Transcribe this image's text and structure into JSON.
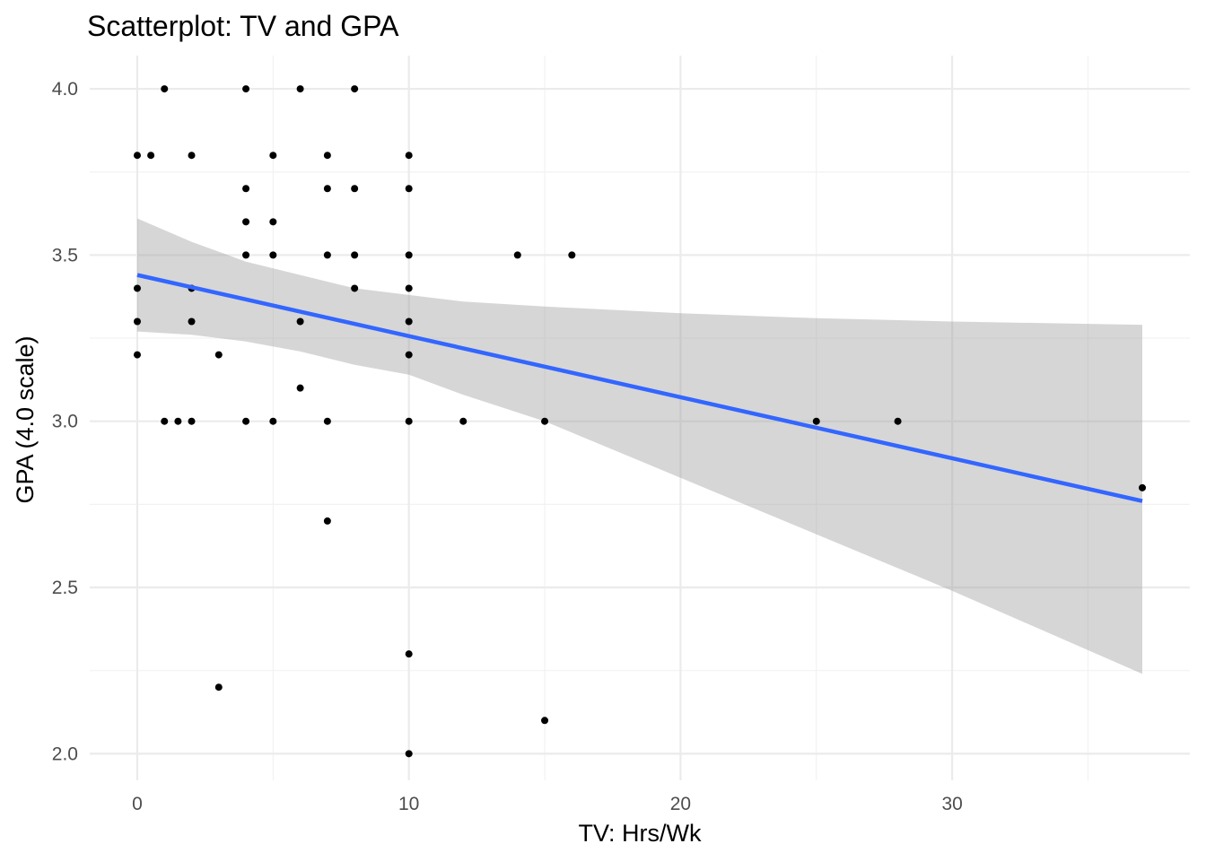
{
  "chart_data": {
    "type": "scatter",
    "title": "Scatterplot: TV and GPA",
    "xlabel": "TV: Hrs/Wk",
    "ylabel": "GPA (4.0 scale)",
    "xlim": [
      -1.75,
      38.75
    ],
    "ylim": [
      1.92,
      4.1
    ],
    "x_ticks": [
      0,
      10,
      20,
      30
    ],
    "x_tick_labels": [
      "0",
      "10",
      "20",
      "30"
    ],
    "y_ticks": [
      2.0,
      2.5,
      3.0,
      3.5,
      4.0
    ],
    "y_tick_labels": [
      "2.0",
      "2.5",
      "3.0",
      "3.5",
      "4.0"
    ],
    "grid": true,
    "point_color": "#000000",
    "line_color": "#3366ff",
    "band_color": "#999999",
    "points": [
      {
        "x": 1,
        "y": 4.0
      },
      {
        "x": 4,
        "y": 4.0
      },
      {
        "x": 6,
        "y": 4.0
      },
      {
        "x": 8,
        "y": 4.0
      },
      {
        "x": 0,
        "y": 3.8
      },
      {
        "x": 0.5,
        "y": 3.8
      },
      {
        "x": 2,
        "y": 3.8
      },
      {
        "x": 5,
        "y": 3.8
      },
      {
        "x": 7,
        "y": 3.8
      },
      {
        "x": 10,
        "y": 3.8
      },
      {
        "x": 4,
        "y": 3.7
      },
      {
        "x": 7,
        "y": 3.7
      },
      {
        "x": 8,
        "y": 3.7
      },
      {
        "x": 10,
        "y": 3.7
      },
      {
        "x": 4,
        "y": 3.6
      },
      {
        "x": 5,
        "y": 3.6
      },
      {
        "x": 4,
        "y": 3.5
      },
      {
        "x": 5,
        "y": 3.5
      },
      {
        "x": 7,
        "y": 3.5
      },
      {
        "x": 8,
        "y": 3.5
      },
      {
        "x": 10,
        "y": 3.5
      },
      {
        "x": 14,
        "y": 3.5
      },
      {
        "x": 16,
        "y": 3.5
      },
      {
        "x": 0,
        "y": 3.4
      },
      {
        "x": 2,
        "y": 3.4
      },
      {
        "x": 8,
        "y": 3.4
      },
      {
        "x": 10,
        "y": 3.4
      },
      {
        "x": 0,
        "y": 3.3
      },
      {
        "x": 2,
        "y": 3.3
      },
      {
        "x": 6,
        "y": 3.3
      },
      {
        "x": 10,
        "y": 3.3
      },
      {
        "x": 0,
        "y": 3.2
      },
      {
        "x": 3,
        "y": 3.2
      },
      {
        "x": 10,
        "y": 3.2
      },
      {
        "x": 6,
        "y": 3.1
      },
      {
        "x": 1,
        "y": 3.0
      },
      {
        "x": 1.5,
        "y": 3.0
      },
      {
        "x": 2,
        "y": 3.0
      },
      {
        "x": 4,
        "y": 3.0
      },
      {
        "x": 5,
        "y": 3.0
      },
      {
        "x": 7,
        "y": 3.0
      },
      {
        "x": 10,
        "y": 3.0
      },
      {
        "x": 12,
        "y": 3.0
      },
      {
        "x": 15,
        "y": 3.0
      },
      {
        "x": 25,
        "y": 3.0
      },
      {
        "x": 28,
        "y": 3.0
      },
      {
        "x": 37,
        "y": 2.8
      },
      {
        "x": 7,
        "y": 2.7
      },
      {
        "x": 10,
        "y": 2.3
      },
      {
        "x": 3,
        "y": 2.2
      },
      {
        "x": 15,
        "y": 2.1
      },
      {
        "x": 10,
        "y": 2.0
      }
    ],
    "fit_line": {
      "x": [
        0,
        37
      ],
      "y": [
        3.44,
        2.76
      ]
    },
    "confidence_band": {
      "x": [
        0,
        2,
        4,
        6,
        8,
        10,
        12,
        15,
        20,
        25,
        30,
        37
      ],
      "upper": [
        3.61,
        3.54,
        3.48,
        3.44,
        3.4,
        3.38,
        3.36,
        3.345,
        3.325,
        3.31,
        3.3,
        3.29
      ],
      "lower": [
        3.27,
        3.26,
        3.24,
        3.21,
        3.17,
        3.14,
        3.08,
        3.0,
        2.83,
        2.66,
        2.49,
        2.24
      ]
    }
  }
}
